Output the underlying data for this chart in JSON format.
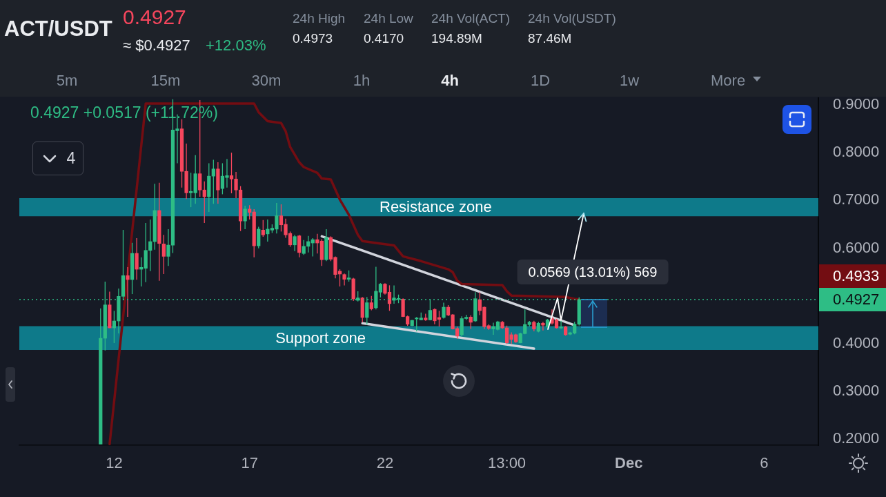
{
  "chart_data": {
    "type": "candlestick",
    "title": "ACT/USDT",
    "subtitle": "0.4927",
    "x": [
      "--11-11T13:00",
      "--11-11T17:00",
      "--11-11T21:00",
      "--11-12T01:00",
      "--11-12T05:00",
      "--11-12T09:00",
      "--11-12T13:00",
      "--11-12T17:00",
      "--11-12T21:00",
      "--11-13T01:00",
      "--11-13T05:00",
      "--11-13T09:00",
      "--11-13T13:00",
      "--11-13T17:00",
      "--11-13T21:00",
      "--11-14T01:00",
      "--11-14T05:00",
      "--11-14T09:00",
      "--11-14T13:00",
      "--11-14T17:00",
      "--11-14T21:00",
      "--11-15T01:00",
      "--11-15T05:00",
      "--11-15T09:00",
      "--11-15T13:00",
      "--11-15T17:00",
      "--11-15T21:00",
      "--11-16T01:00",
      "--11-16T05:00",
      "--11-16T09:00",
      "--11-16T13:00",
      "--11-16T17:00",
      "--11-16T21:00",
      "--11-17T01:00",
      "--11-17T05:00",
      "--11-17T09:00",
      "--11-17T13:00",
      "--11-17T17:00",
      "--11-17T21:00",
      "--11-18T01:00",
      "--11-18T05:00",
      "--11-18T09:00",
      "--11-18T13:00",
      "--11-18T17:00",
      "--11-18T21:00",
      "--11-19T01:00",
      "--11-19T05:00",
      "--11-19T09:00",
      "--11-19T13:00",
      "--11-19T17:00",
      "--11-19T21:00",
      "--11-20T01:00",
      "--11-20T05:00",
      "--11-20T09:00",
      "--11-20T13:00",
      "--11-20T17:00",
      "--11-20T21:00",
      "--11-21T01:00",
      "--11-21T05:00",
      "--11-21T09:00",
      "--11-21T13:00",
      "--11-21T17:00",
      "--11-21T21:00",
      "--11-22T01:00",
      "--11-22T05:00",
      "--11-22T09:00",
      "--11-22T13:00",
      "--11-22T17:00",
      "--11-22T21:00",
      "--11-23T01:00",
      "--11-23T05:00",
      "--11-23T09:00",
      "--11-23T13:00",
      "--11-23T17:00",
      "--11-23T21:00",
      "--11-24T01:00",
      "--11-24T05:00",
      "--11-24T09:00",
      "--11-24T13:00",
      "--11-24T17:00",
      "--11-24T21:00",
      "--11-25T01:00",
      "--11-25T05:00",
      "--11-25T09:00",
      "--11-25T13:00",
      "--11-25T17:00",
      "--11-25T21:00",
      "--11-26T01:00",
      "--11-26T05:00",
      "--11-26T09:00",
      "--11-26T13:00",
      "--11-26T17:00",
      "--11-26T21:00",
      "--11-27T01:00",
      "--11-27T05:00",
      "--11-27T09:00",
      "--11-27T13:00",
      "--11-27T17:00",
      "--11-27T21:00",
      "--11-28T01:00",
      "--11-28T05:00",
      "--11-28T09:00",
      "--11-28T13:00",
      "--11-28T17:00",
      "--11-28T21:00",
      "--11-29T01:00",
      "--11-29T05:00"
    ],
    "ohlc": [
      [
        0.19,
        0.474,
        0.19,
        0.4116
      ],
      [
        0.4116,
        0.53,
        0.386,
        0.4814
      ],
      [
        0.4814,
        0.509,
        0.433,
        0.4332
      ],
      [
        0.4332,
        0.469,
        0.4015,
        0.4477
      ],
      [
        0.4477,
        0.5156,
        0.4217,
        0.4993
      ],
      [
        0.4993,
        0.6384,
        0.491,
        0.5426
      ],
      [
        0.5426,
        0.5604,
        0.4564,
        0.5344
      ],
      [
        0.5344,
        0.6114,
        0.504,
        0.5893
      ],
      [
        0.5893,
        0.621,
        0.534,
        0.556
      ],
      [
        0.556,
        0.581,
        0.52,
        0.56
      ],
      [
        0.558,
        0.653,
        0.529,
        0.5955
      ],
      [
        0.5955,
        0.66,
        0.552,
        0.6139
      ],
      [
        0.6139,
        0.735,
        0.597,
        0.679
      ],
      [
        0.679,
        0.737,
        0.532,
        0.61
      ],
      [
        0.609,
        0.628,
        0.546,
        0.583
      ],
      [
        0.583,
        0.64,
        0.563,
        0.6066
      ],
      [
        0.6066,
        0.912,
        0.59,
        0.8475
      ],
      [
        0.846,
        0.88,
        0.778,
        0.85
      ],
      [
        0.85,
        0.87,
        0.727,
        0.761
      ],
      [
        0.761,
        0.819,
        0.703,
        0.716
      ],
      [
        0.716,
        0.758,
        0.686,
        0.719
      ],
      [
        0.716,
        0.795,
        0.693,
        0.756
      ],
      [
        0.756,
        0.91,
        0.708,
        0.722
      ],
      [
        0.722,
        0.74,
        0.653,
        0.708
      ],
      [
        0.708,
        0.778,
        0.676,
        0.751
      ],
      [
        0.751,
        0.785,
        0.693,
        0.766
      ],
      [
        0.766,
        0.78,
        0.693,
        0.722
      ],
      [
        0.725,
        0.778,
        0.713,
        0.751
      ],
      [
        0.748,
        0.787,
        0.727,
        0.752
      ],
      [
        0.752,
        0.8,
        0.715,
        0.745
      ],
      [
        0.745,
        0.76,
        0.705,
        0.722
      ],
      [
        0.722,
        0.73,
        0.636,
        0.657
      ],
      [
        0.657,
        0.689,
        0.64,
        0.682
      ],
      [
        0.682,
        0.69,
        0.66,
        0.675
      ],
      [
        0.676,
        0.682,
        0.581,
        0.605
      ],
      [
        0.605,
        0.645,
        0.6,
        0.64
      ],
      [
        0.638,
        0.659,
        0.624,
        0.628
      ],
      [
        0.63,
        0.66,
        0.614,
        0.64
      ],
      [
        0.638,
        0.65,
        0.632,
        0.642
      ],
      [
        0.64,
        0.695,
        0.631,
        0.668
      ],
      [
        0.668,
        0.692,
        0.635,
        0.649
      ],
      [
        0.65,
        0.662,
        0.622,
        0.628
      ],
      [
        0.631,
        0.635,
        0.603,
        0.607
      ],
      [
        0.607,
        0.628,
        0.594,
        0.6245
      ],
      [
        0.626,
        0.628,
        0.581,
        0.591
      ],
      [
        0.589,
        0.617,
        0.586,
        0.604
      ],
      [
        0.604,
        0.626,
        0.591,
        0.614
      ],
      [
        0.611,
        0.621,
        0.583,
        0.618
      ],
      [
        0.618,
        0.63,
        0.589,
        0.611
      ],
      [
        0.615,
        0.619,
        0.563,
        0.576
      ],
      [
        0.576,
        0.64,
        0.573,
        0.6225
      ],
      [
        0.6225,
        0.625,
        0.573,
        0.577
      ],
      [
        0.581,
        0.583,
        0.537,
        0.545
      ],
      [
        0.552,
        0.556,
        0.52,
        0.546
      ],
      [
        0.545,
        0.547,
        0.522,
        0.535
      ],
      [
        0.535,
        0.5536,
        0.53,
        0.538
      ],
      [
        0.536,
        0.538,
        0.4896,
        0.494
      ],
      [
        0.491,
        0.51,
        0.4886,
        0.496
      ],
      [
        0.496,
        0.498,
        0.445,
        0.455
      ],
      [
        0.455,
        0.498,
        0.44,
        0.486
      ],
      [
        0.486,
        0.5,
        0.47,
        0.473
      ],
      [
        0.4753,
        0.561,
        0.472,
        0.51
      ],
      [
        0.508,
        0.527,
        0.497,
        0.525
      ],
      [
        0.525,
        0.527,
        0.503,
        0.5055
      ],
      [
        0.508,
        0.5224,
        0.469,
        0.484
      ],
      [
        0.491,
        0.522,
        0.484,
        0.496
      ],
      [
        0.493,
        0.503,
        0.485,
        0.495
      ],
      [
        0.4935,
        0.495,
        0.456,
        0.457
      ],
      [
        0.457,
        0.459,
        0.4375,
        0.441
      ],
      [
        0.438,
        0.45,
        0.437,
        0.449
      ],
      [
        0.452,
        0.456,
        0.426,
        0.454
      ],
      [
        0.45,
        0.4655,
        0.449,
        0.454
      ],
      [
        0.454,
        0.463,
        0.448,
        0.45
      ],
      [
        0.45,
        0.4935,
        0.449,
        0.47
      ],
      [
        0.472,
        0.474,
        0.441,
        0.448
      ],
      [
        0.455,
        0.469,
        0.436,
        0.451
      ],
      [
        0.455,
        0.486,
        0.4528,
        0.4766
      ],
      [
        0.4766,
        0.481,
        0.458,
        0.46
      ],
      [
        0.4607,
        0.462,
        0.43,
        0.431
      ],
      [
        0.432,
        0.436,
        0.4106,
        0.416
      ],
      [
        0.4188,
        0.4574,
        0.415,
        0.4528
      ],
      [
        0.4528,
        0.4607,
        0.45,
        0.4555
      ],
      [
        0.456,
        0.4595,
        0.431,
        0.445
      ],
      [
        0.4477,
        0.508,
        0.446,
        0.4944
      ],
      [
        0.4925,
        0.508,
        0.46,
        0.4694
      ],
      [
        0.4766,
        0.478,
        0.431,
        0.4357
      ],
      [
        0.438,
        0.441,
        0.429,
        0.432
      ],
      [
        0.431,
        0.444,
        0.419,
        0.436
      ],
      [
        0.43,
        0.448,
        0.428,
        0.446
      ],
      [
        0.4453,
        0.4478,
        0.431,
        0.4332
      ],
      [
        0.4332,
        0.438,
        0.3996,
        0.402
      ],
      [
        0.419,
        0.424,
        0.4,
        0.409
      ],
      [
        0.419,
        0.421,
        0.402,
        0.404
      ],
      [
        0.402,
        0.423,
        0.401,
        0.4213
      ],
      [
        0.4213,
        0.472,
        0.42,
        0.4405
      ],
      [
        0.44,
        0.4478,
        0.436,
        0.4453
      ],
      [
        0.4453,
        0.448,
        0.426,
        0.431
      ],
      [
        0.426,
        0.446,
        0.424,
        0.443
      ],
      [
        0.443,
        0.446,
        0.428,
        0.439
      ],
      [
        0.4357,
        0.452,
        0.433,
        0.45
      ],
      [
        0.4528,
        0.472,
        0.44,
        0.443
      ],
      [
        0.45,
        0.452,
        0.432,
        0.4332
      ],
      [
        0.433,
        0.45,
        0.431,
        0.435
      ],
      [
        0.4357,
        0.437,
        0.417,
        0.4188
      ],
      [
        0.42,
        0.425,
        0.418,
        0.423
      ],
      [
        0.4222,
        0.446,
        0.42,
        0.441
      ],
      [
        0.441,
        0.4973,
        0.4385,
        0.4927
      ]
    ],
    "colors": [
      "#2ebd85",
      "#2ebd85",
      "#f6465d",
      "#2ebd85",
      "#2ebd85",
      "#2ebd85",
      "#f6465d",
      "#2ebd85",
      "#f6465d",
      "#2ebd85",
      "#2ebd85",
      "#2ebd85",
      "#2ebd85",
      "#f6465d",
      "#f6465d",
      "#2ebd85",
      "#2ebd85",
      "#2ebd85",
      "#f6465d",
      "#f6465d",
      "#2ebd85",
      "#2ebd85",
      "#f6465d",
      "#f6465d",
      "#2ebd85",
      "#2ebd85",
      "#f6465d",
      "#2ebd85",
      "#2ebd85",
      "#f6465d",
      "#f6465d",
      "#f6465d",
      "#2ebd85",
      "#f6465d",
      "#f6465d",
      "#2ebd85",
      "#f6465d",
      "#2ebd85",
      "#2ebd85",
      "#2ebd85",
      "#f6465d",
      "#f6465d",
      "#f6465d",
      "#2ebd85",
      "#f6465d",
      "#2ebd85",
      "#2ebd85",
      "#2ebd85",
      "#f6465d",
      "#f6465d",
      "#2ebd85",
      "#f6465d",
      "#f6465d",
      "#f6465d",
      "#f6465d",
      "#2ebd85",
      "#f6465d",
      "#2ebd85",
      "#f6465d",
      "#2ebd85",
      "#f6465d",
      "#2ebd85",
      "#2ebd85",
      "#f6465d",
      "#f6465d",
      "#2ebd85",
      "#2ebd85",
      "#f6465d",
      "#f6465d",
      "#2ebd85",
      "#2ebd85",
      "#2ebd85",
      "#f6465d",
      "#2ebd85",
      "#f6465d",
      "#f6465d",
      "#2ebd85",
      "#f6465d",
      "#f6465d",
      "#f6465d",
      "#2ebd85",
      "#2ebd85",
      "#f6465d",
      "#2ebd85",
      "#f6465d",
      "#f6465d",
      "#f6465d",
      "#2ebd85",
      "#2ebd85",
      "#f6465d",
      "#f6465d",
      "#f6465d",
      "#f6465d",
      "#2ebd85",
      "#2ebd85",
      "#2ebd85",
      "#f6465d",
      "#2ebd85",
      "#f6465d",
      "#2ebd85",
      "#f6465d",
      "#f6465d",
      "#2ebd85",
      "#f6465d",
      "#2ebd85",
      "#2ebd85",
      "#2ebd85"
    ],
    "series": [
      {
        "type": "line",
        "color": "#730d12",
        "x": [
          "--11-11T21:00",
          "--11-13T05:00",
          "--11-17T05:00",
          "--11-17T09:00",
          "--11-17T17:00",
          "--11-18T05:00",
          "--11-18T09:00",
          "--11-18T13:00",
          "--11-18T21:00",
          "--11-19T01:00",
          "--11-19T13:00",
          "--11-19T17:00",
          "--11-20T01:00",
          "--11-20T09:00",
          "--11-20T17:00",
          "--11-21T01:00",
          "--11-21T05:00",
          "--11-21T17:00",
          "--11-22T09:00",
          "--11-22T17:00",
          "--11-23T09:00",
          "--11-24T09:00",
          "--11-24T13:00",
          "--11-24T17:00",
          "--11-24T21:00",
          "--11-26T09:00",
          "--11-26T13:00",
          "--11-26T17:00",
          "--11-28T17:00",
          "--11-29T01:00",
          "--11-29T05:00"
        ],
        "values": [
          0.19,
          0.903,
          0.903,
          0.885,
          0.866,
          0.862,
          0.845,
          0.812,
          0.78,
          0.77,
          0.758,
          0.746,
          0.744,
          0.702,
          0.67,
          0.628,
          0.615,
          0.611,
          0.606,
          0.583,
          0.573,
          0.556,
          0.55,
          0.532,
          0.525,
          0.523,
          0.51,
          0.501,
          0.498,
          0.494,
          0.493
        ]
      },
      {
        "type": "line",
        "color": "#d1d4dc",
        "x": [
          "--11-19T17:00",
          "--11-29T01:00"
        ],
        "values": [
          0.625,
          0.439
        ]
      },
      {
        "type": "line",
        "color": "#d1d4dc",
        "x": [
          "--11-21T05:00",
          "--11-27T13:00"
        ],
        "values": [
          0.443,
          0.39
        ]
      }
    ],
    "xlim": [
      "--11-08T13:00",
      "--12-08T01:00"
    ],
    "xticks": [
      {
        "value": "--11-12T01:00",
        "label": "12"
      },
      {
        "value": "--11-17T01:00",
        "label": "17"
      },
      {
        "value": "--11-22T01:00",
        "label": "22"
      },
      {
        "value": "--11-26T13:00",
        "label": "13:00"
      },
      {
        "value": "--12-01T01:00",
        "label": "Dec"
      },
      {
        "value": "--12-06T01:00",
        "label": "6"
      }
    ],
    "ylim": [
      0.1876,
      0.9145
    ],
    "yticks": [
      {
        "value": 0.2,
        "label": "0.2000"
      },
      {
        "value": 0.3,
        "label": "0.3000"
      },
      {
        "value": 0.4,
        "label": "0.4000"
      },
      {
        "value": 0.6,
        "label": "0.6000"
      },
      {
        "value": 0.7,
        "label": "0.7000"
      },
      {
        "value": 0.8,
        "label": "0.8000"
      },
      {
        "value": 0.9,
        "label": "0.9000"
      }
    ],
    "ref_lines": [
      {
        "axis": "y",
        "value": 0.4927,
        "label": "0.4927",
        "color": "#2ebd85",
        "line_style": "dotted"
      }
    ],
    "bands": [
      {
        "axis": "y",
        "from": 0.667,
        "to": 0.705,
        "label": "Resistance zone",
        "color": "#0e7a8a"
      },
      {
        "axis": "y",
        "from": 0.387,
        "to": 0.437,
        "label": "Support zone",
        "color": "#0e7a8a"
      }
    ],
    "annotations": [
      "≈ $0.4927",
      "+12.03%",
      "24h High",
      "0.4973",
      "24h Low",
      "0.4170",
      "24h Vol(ACT)",
      "194.89M",
      "24h Vol(USDT)",
      "87.46M",
      "5m",
      "15m",
      "30m",
      "1h",
      "4h",
      "1D",
      "1w",
      "More",
      "0.4927 +0.0517 (+11.72%)",
      "4",
      {
        "text": "0.0569 (13.01%) 569",
        "x": "--11-29T17:00",
        "y": 0.4927
      },
      "0.4933"
    ]
  }
}
